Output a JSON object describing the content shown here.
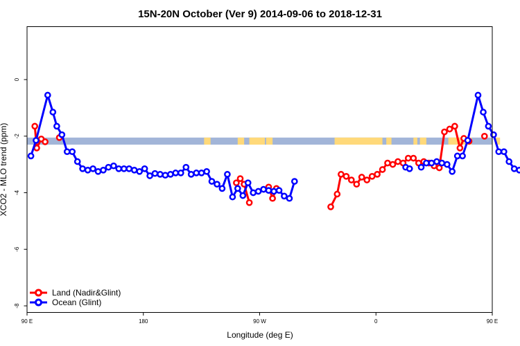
{
  "colors": {
    "land": "#ff0000",
    "ocean": "#0000ff",
    "ocean_band": "#a2b5d8",
    "land_band": "#ffd97a",
    "frame": "#000000"
  },
  "chart_data": {
    "type": "line",
    "title": "15N-20N October (Ver 9)   2014-09-06 to 2018-12-31",
    "xlabel": "Longitude (deg E)",
    "ylabel": "XCO2 - MLO trend (ppm)",
    "xlim": [
      90,
      450
    ],
    "ylim": [
      -8,
      2
    ],
    "grid": false,
    "legend_position": "bottom-left",
    "x_ticks": [
      {
        "value": 90,
        "label": "90 E"
      },
      {
        "value": 180,
        "label": "180"
      },
      {
        "value": 270,
        "label": "90 W"
      },
      {
        "value": 360,
        "label": "0"
      },
      {
        "value": 450,
        "label": "90 E"
      },
      {
        "value": 540,
        "label": "180"
      }
    ],
    "y_ticks": [
      {
        "value": 0,
        "label": "0"
      },
      {
        "value": -2,
        "label": "-2"
      },
      {
        "value": -4,
        "label": "-4"
      },
      {
        "value": -6,
        "label": "-6"
      },
      {
        "value": -8,
        "label": "-8"
      }
    ],
    "reference_band": {
      "y_range": [
        -2.3,
        -2.05
      ],
      "land_segments": [
        [
          227,
          232
        ],
        [
          253,
          258
        ],
        [
          262,
          274
        ],
        [
          275,
          280
        ],
        [
          328,
          365
        ],
        [
          368,
          372
        ],
        [
          389,
          392
        ],
        [
          394,
          399
        ],
        [
          416,
          434
        ],
        [
          452,
          456
        ]
      ]
    },
    "series": [
      {
        "name": "Land (Nadir&Glint)",
        "color": "#ff0000",
        "segments": [
          [
            [
              96,
              -1.65
            ],
            [
              97.5,
              -2.42
            ],
            [
              101,
              -2.1
            ],
            [
              104,
              -2.2
            ]
          ],
          [
            [
              115,
              -2.05
            ]
          ],
          [
            [
              252,
              -3.65
            ],
            [
              255,
              -3.5
            ],
            [
              258,
              -3.7
            ],
            [
              262,
              -4.35
            ]
          ],
          [
            [
              277,
              -3.8
            ],
            [
              280,
              -4.2
            ],
            [
              283,
              -3.85
            ]
          ],
          [
            [
              325,
              -4.5
            ],
            [
              330,
              -4.05
            ],
            [
              333,
              -3.35
            ],
            [
              337,
              -3.42
            ],
            [
              341,
              -3.55
            ],
            [
              345,
              -3.7
            ],
            [
              349,
              -3.45
            ],
            [
              353,
              -3.55
            ],
            [
              357,
              -3.42
            ],
            [
              361,
              -3.35
            ],
            [
              365,
              -3.18
            ],
            [
              369,
              -2.95
            ],
            [
              373,
              -3.0
            ],
            [
              377,
              -2.9
            ],
            [
              381,
              -2.95
            ],
            [
              385,
              -2.78
            ],
            [
              389,
              -2.78
            ],
            [
              393,
              -2.95
            ],
            [
              397,
              -2.9
            ],
            [
              401,
              -2.95
            ],
            [
              405,
              -3.05
            ],
            [
              409,
              -3.12
            ],
            [
              413,
              -1.85
            ],
            [
              417,
              -1.75
            ],
            [
              421,
              -1.65
            ],
            [
              425,
              -2.42
            ],
            [
              428,
              -2.08
            ],
            [
              432,
              -2.18
            ]
          ],
          [
            [
              444,
              -2.0
            ]
          ]
        ]
      },
      {
        "name": "Ocean (Glint)",
        "color": "#0000ff",
        "segments": [
          [
            [
              93,
              -2.7
            ],
            [
              97,
              -2.15
            ],
            [
              106,
              -0.55
            ],
            [
              110,
              -1.15
            ],
            [
              113,
              -1.65
            ],
            [
              117,
              -1.95
            ],
            [
              121,
              -2.55
            ],
            [
              125,
              -2.55
            ],
            [
              129,
              -2.9
            ],
            [
              133,
              -3.15
            ],
            [
              137,
              -3.2
            ],
            [
              141,
              -3.15
            ],
            [
              145,
              -3.25
            ],
            [
              149,
              -3.2
            ],
            [
              153,
              -3.1
            ],
            [
              157,
              -3.05
            ],
            [
              161,
              -3.15
            ],
            [
              165,
              -3.15
            ],
            [
              169,
              -3.15
            ],
            [
              173,
              -3.2
            ],
            [
              177,
              -3.25
            ],
            [
              181,
              -3.15
            ],
            [
              185,
              -3.4
            ],
            [
              189,
              -3.32
            ],
            [
              193,
              -3.35
            ],
            [
              197,
              -3.38
            ],
            [
              201,
              -3.35
            ],
            [
              205,
              -3.3
            ],
            [
              209,
              -3.3
            ],
            [
              213,
              -3.1
            ],
            [
              217,
              -3.35
            ],
            [
              221,
              -3.3
            ],
            [
              225,
              -3.3
            ],
            [
              229,
              -3.25
            ],
            [
              233,
              -3.6
            ],
            [
              237,
              -3.7
            ],
            [
              241,
              -3.85
            ],
            [
              245,
              -3.35
            ],
            [
              249,
              -4.15
            ],
            [
              253,
              -3.85
            ],
            [
              257,
              -4.1
            ],
            [
              261,
              -3.65
            ],
            [
              265,
              -4.0
            ],
            [
              269,
              -3.95
            ],
            [
              273,
              -3.88
            ],
            [
              277,
              -3.92
            ],
            [
              281,
              -3.95
            ],
            [
              285,
              -3.92
            ],
            [
              289,
              -4.12
            ],
            [
              293,
              -4.2
            ],
            [
              297,
              -3.6
            ]
          ],
          [
            [
              383,
              -3.1
            ],
            [
              386,
              -3.15
            ]
          ],
          [
            [
              395,
              -3.1
            ],
            [
              399,
              -2.95
            ],
            [
              403,
              -2.95
            ],
            [
              407,
              -2.9
            ],
            [
              411,
              -2.95
            ],
            [
              415,
              -3.0
            ],
            [
              419,
              -3.25
            ],
            [
              423,
              -2.7
            ],
            [
              427,
              -2.7
            ],
            [
              431,
              -2.15
            ],
            [
              439,
              -0.55
            ],
            [
              443,
              -1.15
            ],
            [
              447,
              -1.65
            ],
            [
              451,
              -1.95
            ],
            [
              455,
              -2.55
            ],
            [
              459,
              -2.55
            ],
            [
              463,
              -2.9
            ],
            [
              467,
              -3.15
            ],
            [
              471,
              -3.2
            ],
            [
              475,
              -3.15
            ],
            [
              479,
              -3.25
            ],
            [
              483,
              -3.2
            ],
            [
              487,
              -3.1
            ],
            [
              491,
              -3.05
            ],
            [
              495,
              -3.15
            ]
          ]
        ]
      }
    ]
  }
}
